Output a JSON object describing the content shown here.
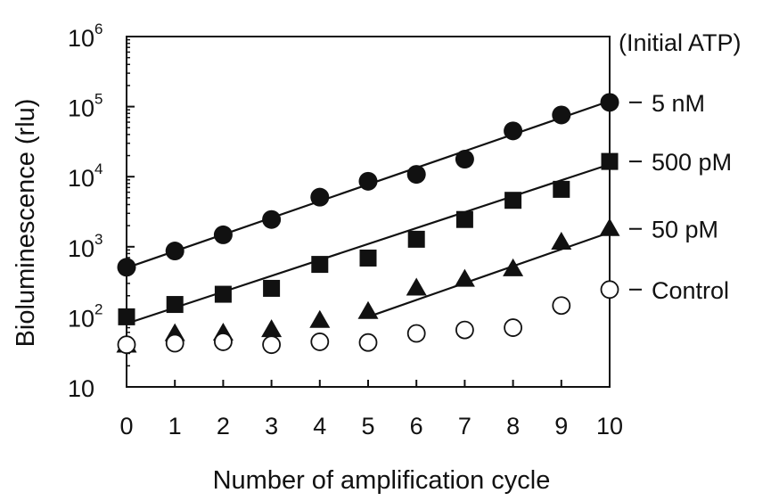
{
  "chart_data": {
    "type": "scatter",
    "title": "",
    "xlabel": "Number of amplification cycle",
    "ylabel": "Bioluminescence (rlu)",
    "x_ticks": [
      "0",
      "1",
      "2",
      "3",
      "4",
      "5",
      "6",
      "7",
      "8",
      "9",
      "10"
    ],
    "xlim": [
      0,
      10
    ],
    "ylim": [
      10,
      1000000
    ],
    "y_scale": "log",
    "y_ticks": [
      {
        "value": 10,
        "base": "10",
        "exp": ""
      },
      {
        "value": 100,
        "base": "10",
        "exp": "2"
      },
      {
        "value": 1000,
        "base": "10",
        "exp": "3"
      },
      {
        "value": 10000,
        "base": "10",
        "exp": "4"
      },
      {
        "value": 100000,
        "base": "10",
        "exp": "5"
      },
      {
        "value": 1000000,
        "base": "10",
        "exp": "6"
      }
    ],
    "grid": false,
    "legend_title": "(Initial ATP)",
    "series": [
      {
        "name": "5 nM",
        "marker": "filled-circle",
        "x": [
          0,
          1,
          2,
          3,
          4,
          5,
          6,
          7,
          8,
          9,
          10
        ],
        "values": [
          510,
          870,
          1480,
          2450,
          5100,
          8600,
          10800,
          17800,
          45000,
          76000,
          115000
        ],
        "fit": {
          "x": [
            0,
            10
          ],
          "y": [
            500,
            120000
          ]
        }
      },
      {
        "name": "500 pM",
        "marker": "filled-square",
        "x": [
          0,
          1,
          2,
          3,
          4,
          5,
          6,
          7,
          8,
          9,
          10
        ],
        "values": [
          100,
          150,
          210,
          255,
          560,
          690,
          1280,
          2450,
          4600,
          6600,
          16500
        ],
        "fit": {
          "x": [
            0,
            10
          ],
          "y": [
            80,
            15000
          ]
        }
      },
      {
        "name": "50 pM",
        "marker": "filled-triangle",
        "x": [
          0,
          1,
          2,
          3,
          4,
          5,
          6,
          7,
          8,
          9,
          10
        ],
        "values": [
          39,
          57,
          58,
          65,
          88,
          118,
          255,
          340,
          480,
          1150,
          1800
        ],
        "fit": {
          "x": [
            5,
            10
          ],
          "y": [
            100,
            1600
          ]
        }
      },
      {
        "name": "Control",
        "marker": "open-circle",
        "x": [
          0,
          1,
          2,
          3,
          4,
          5,
          6,
          7,
          8,
          9,
          10
        ],
        "values": [
          40,
          42,
          44,
          40,
          44,
          43,
          58,
          65,
          70,
          145,
          245
        ]
      }
    ]
  },
  "colors": {
    "ink": "#111111",
    "background": "#ffffff"
  }
}
